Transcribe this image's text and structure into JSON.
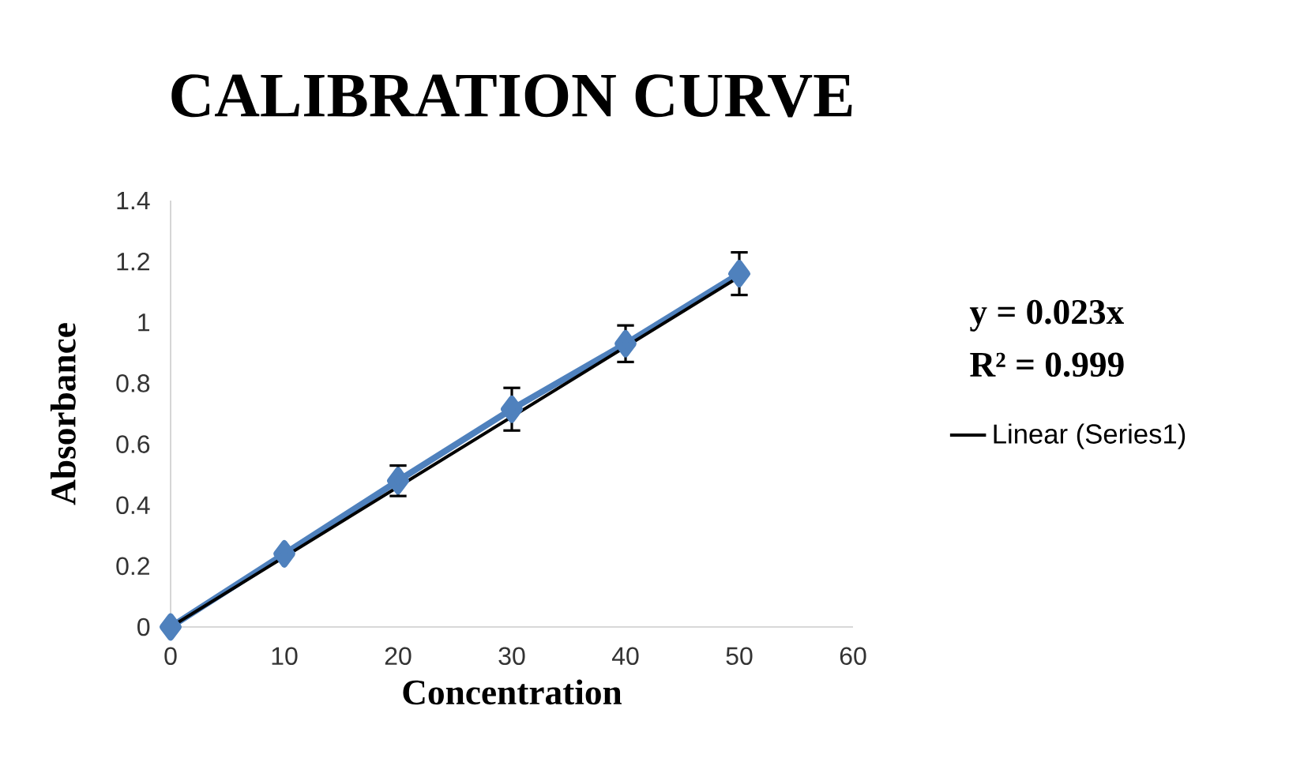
{
  "chart_data": {
    "type": "line",
    "title": "CALIBRATION CURVE",
    "xlabel": "Concentration",
    "ylabel": "Absorbance",
    "xlim": [
      0,
      60
    ],
    "xticks": [
      0,
      10,
      20,
      30,
      40,
      50,
      60
    ],
    "ylim": [
      0,
      1.4
    ],
    "yticks": [
      0,
      0.2,
      0.4,
      0.6,
      0.8,
      1,
      1.2,
      1.4
    ],
    "grid": false,
    "legend": "right",
    "annotations": [
      "**y = 0.023x**",
      "**R² = 0.999**"
    ],
    "series": [
      {
        "color": "#4f81bd",
        "marker": "diamond",
        "line_style": "solid",
        "x": [
          0,
          10,
          20,
          30,
          40,
          50
        ],
        "values": [
          0,
          0.24,
          0.48,
          0.715,
          0.93,
          1.16
        ],
        "errors": [
          null,
          null,
          0.05,
          0.07,
          0.06,
          0.07
        ]
      },
      {
        "name": "Linear (Series1)",
        "color": "#000000",
        "marker": "none",
        "line_style": "solid",
        "x": [
          0,
          50
        ],
        "values": [
          0,
          1.15
        ]
      }
    ]
  }
}
